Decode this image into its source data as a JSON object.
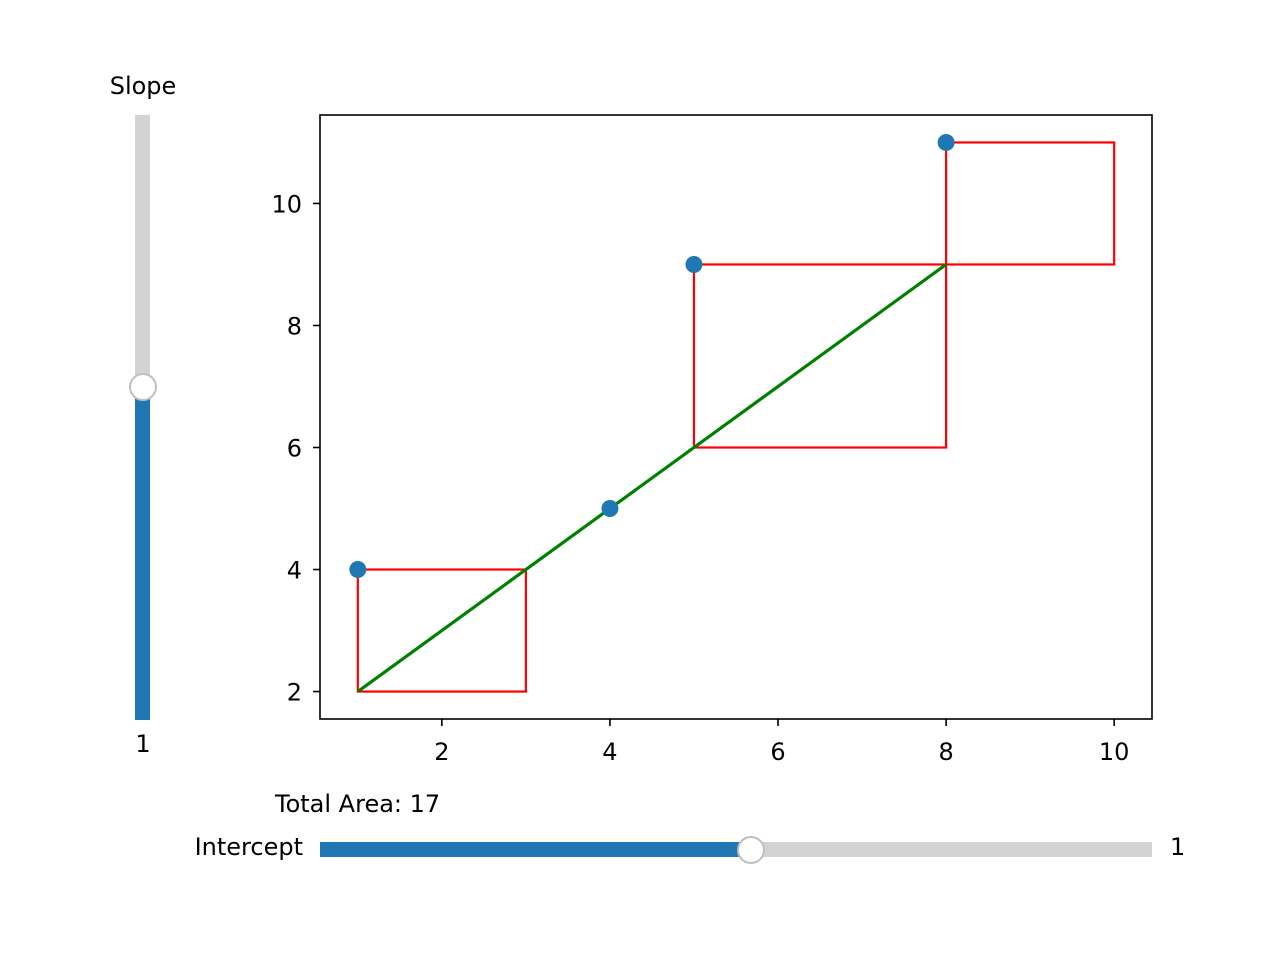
{
  "sliders": {
    "slope": {
      "label": "Slope",
      "value_text": "1",
      "min": 0,
      "max": 2,
      "value": 1.1
    },
    "intercept": {
      "label": "Intercept",
      "value_text": "1",
      "min": 0,
      "max": 2,
      "value": 1.035
    }
  },
  "total_area_text": "Total Area: 17",
  "colors": {
    "points": "#1f77b4",
    "line": "#008000",
    "squares": "#ff0000",
    "slider_fill": "#1f77b4",
    "slider_track": "#d3d3d3"
  },
  "chart_data": {
    "type": "scatter",
    "title": "",
    "xlabel": "",
    "ylabel": "",
    "xlim": [
      0.55,
      10.45
    ],
    "ylim": [
      1.55,
      11.45
    ],
    "xticks": [
      2,
      4,
      6,
      8,
      10
    ],
    "yticks": [
      2,
      4,
      6,
      8,
      10
    ],
    "grid": false,
    "points": [
      {
        "x": 1,
        "y": 4
      },
      {
        "x": 4,
        "y": 5
      },
      {
        "x": 5,
        "y": 9
      },
      {
        "x": 8,
        "y": 11
      }
    ],
    "fit_line": {
      "slope": 1,
      "intercept": 1,
      "x_range": [
        1,
        8
      ]
    },
    "residual_squares": [
      {
        "x": 1,
        "y": 2,
        "size": 2
      },
      {
        "x": 5,
        "y": 6,
        "size": 3
      },
      {
        "x": 8,
        "y": 9,
        "size": 2
      }
    ]
  }
}
